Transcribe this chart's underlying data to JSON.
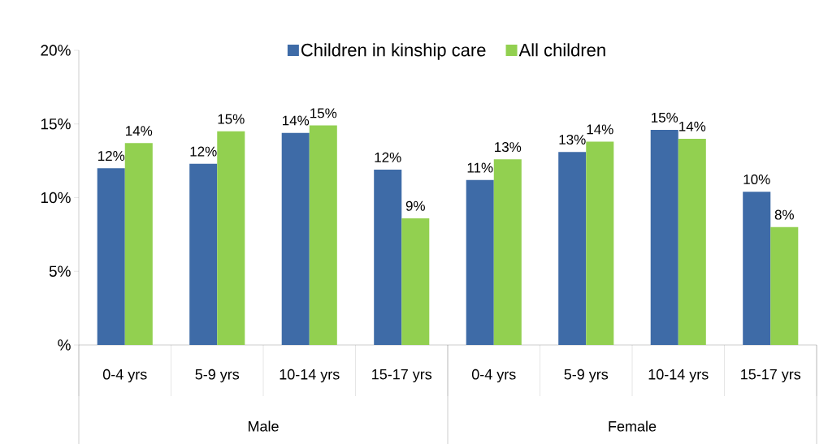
{
  "chart_data": {
    "type": "bar",
    "categories": [
      "0-4 yrs",
      "5-9 yrs",
      "10-14 yrs",
      "15-17 yrs",
      "0-4 yrs",
      "5-9 yrs",
      "10-14 yrs",
      "15-17 yrs"
    ],
    "series": [
      {
        "name": "Children in kinship care",
        "color": "#3e6ba7",
        "values": [
          12.0,
          12.3,
          14.4,
          11.9,
          11.2,
          13.1,
          14.6,
          10.4
        ],
        "value_labels": [
          "12%",
          "12%",
          "14%",
          "12%",
          "11%",
          "13%",
          "15%",
          "10%"
        ]
      },
      {
        "name": "All children",
        "color": "#92d050",
        "values": [
          13.7,
          14.5,
          14.9,
          8.6,
          12.6,
          13.8,
          14.0,
          8.0
        ],
        "value_labels": [
          "14%",
          "15%",
          "15%",
          "9%",
          "13%",
          "14%",
          "14%",
          "8%"
        ]
      }
    ],
    "ylim": [
      0,
      20
    ],
    "yticks": [
      {
        "value": 0,
        "label": "%"
      },
      {
        "value": 5,
        "label": "5%"
      },
      {
        "value": 10,
        "label": "10%"
      },
      {
        "value": 15,
        "label": "15%"
      },
      {
        "value": 20,
        "label": "20%"
      }
    ],
    "legend": "top",
    "annotations": [
      "Male",
      "Female"
    ]
  }
}
